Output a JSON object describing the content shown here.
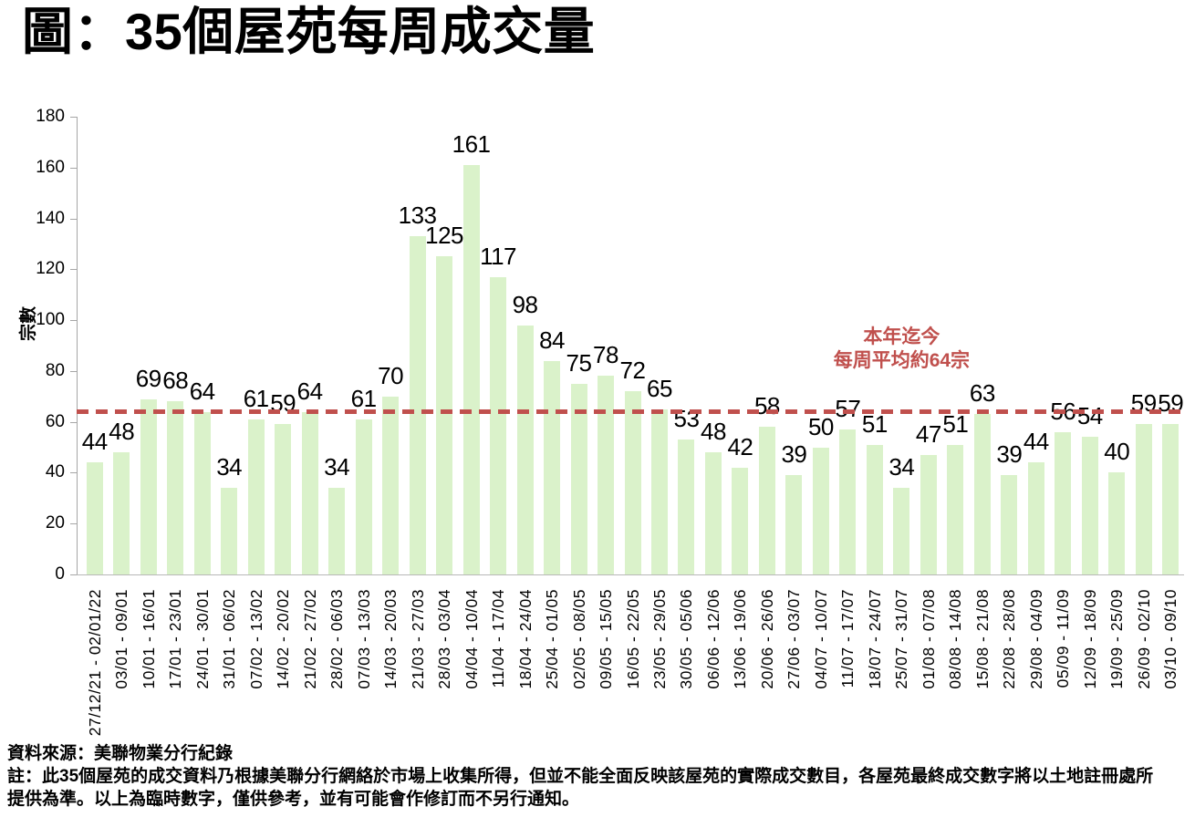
{
  "title": "圖：35個屋苑每周成交量",
  "chart_data": {
    "type": "bar",
    "title": "圖：35個屋苑每周成交量",
    "ylabel": "宗數",
    "xlabel": "",
    "ylim": [
      0,
      180
    ],
    "ytick_step": 20,
    "grid": false,
    "legend": false,
    "bar_color": "#DAF2CA",
    "categories": [
      "27/12/21 - 02/01/22",
      "03/01 - 09/01",
      "10/01 - 16/01",
      "17/01 - 23/01",
      "24/01 - 30/01",
      "31/01 - 06/02",
      "07/02 - 13/02",
      "14/02 - 20/02",
      "21/02 - 27/02",
      "28/02 - 06/03",
      "07/03 - 13/03",
      "14/03 - 20/03",
      "21/03 - 27/03",
      "28/03 - 03/04",
      "04/04 - 10/04",
      "11/04 - 17/04",
      "18/04 - 24/04",
      "25/04 - 01/05",
      "02/05 - 08/05",
      "09/05 - 15/05",
      "16/05 - 22/05",
      "23/05 - 29/05",
      "30/05 - 05/06",
      "06/06 - 12/06",
      "13/06 - 19/06",
      "20/06 - 26/06",
      "27/06 - 03/07",
      "04/07 - 10/07",
      "11/07 - 17/07",
      "18/07 - 24/07",
      "25/07 - 31/07",
      "01/08 - 07/08",
      "08/08 - 14/08",
      "15/08 - 21/08",
      "22/08 - 28/08",
      "29/08 - 04/09",
      "05/09 - 11/09",
      "12/09 - 18/09",
      "19/09 - 25/09",
      "26/09 - 02/10",
      "03/10 - 09/10"
    ],
    "values": [
      44,
      48,
      69,
      68,
      64,
      34,
      61,
      59,
      64,
      34,
      61,
      70,
      133,
      125,
      161,
      117,
      98,
      84,
      75,
      78,
      72,
      65,
      53,
      48,
      42,
      58,
      39,
      50,
      57,
      51,
      34,
      47,
      51,
      63,
      39,
      44,
      56,
      54,
      40,
      59,
      59
    ],
    "avg_line": {
      "value": 64,
      "color": "#C0504D",
      "label_line1": "本年迄今",
      "label_line2": "每周平均約64宗"
    }
  },
  "footer": {
    "source": "資料來源：美聯物業分行紀錄",
    "note": "註：此35個屋苑的成交資料乃根據美聯分行網絡於市場上收集所得，但並不能全面反映該屋苑的實際成交數目，各屋苑最終成交數字將以土地註冊處所提供為準。以上為臨時數字，僅供參考，並有可能會作修訂而不另行通知。"
  }
}
